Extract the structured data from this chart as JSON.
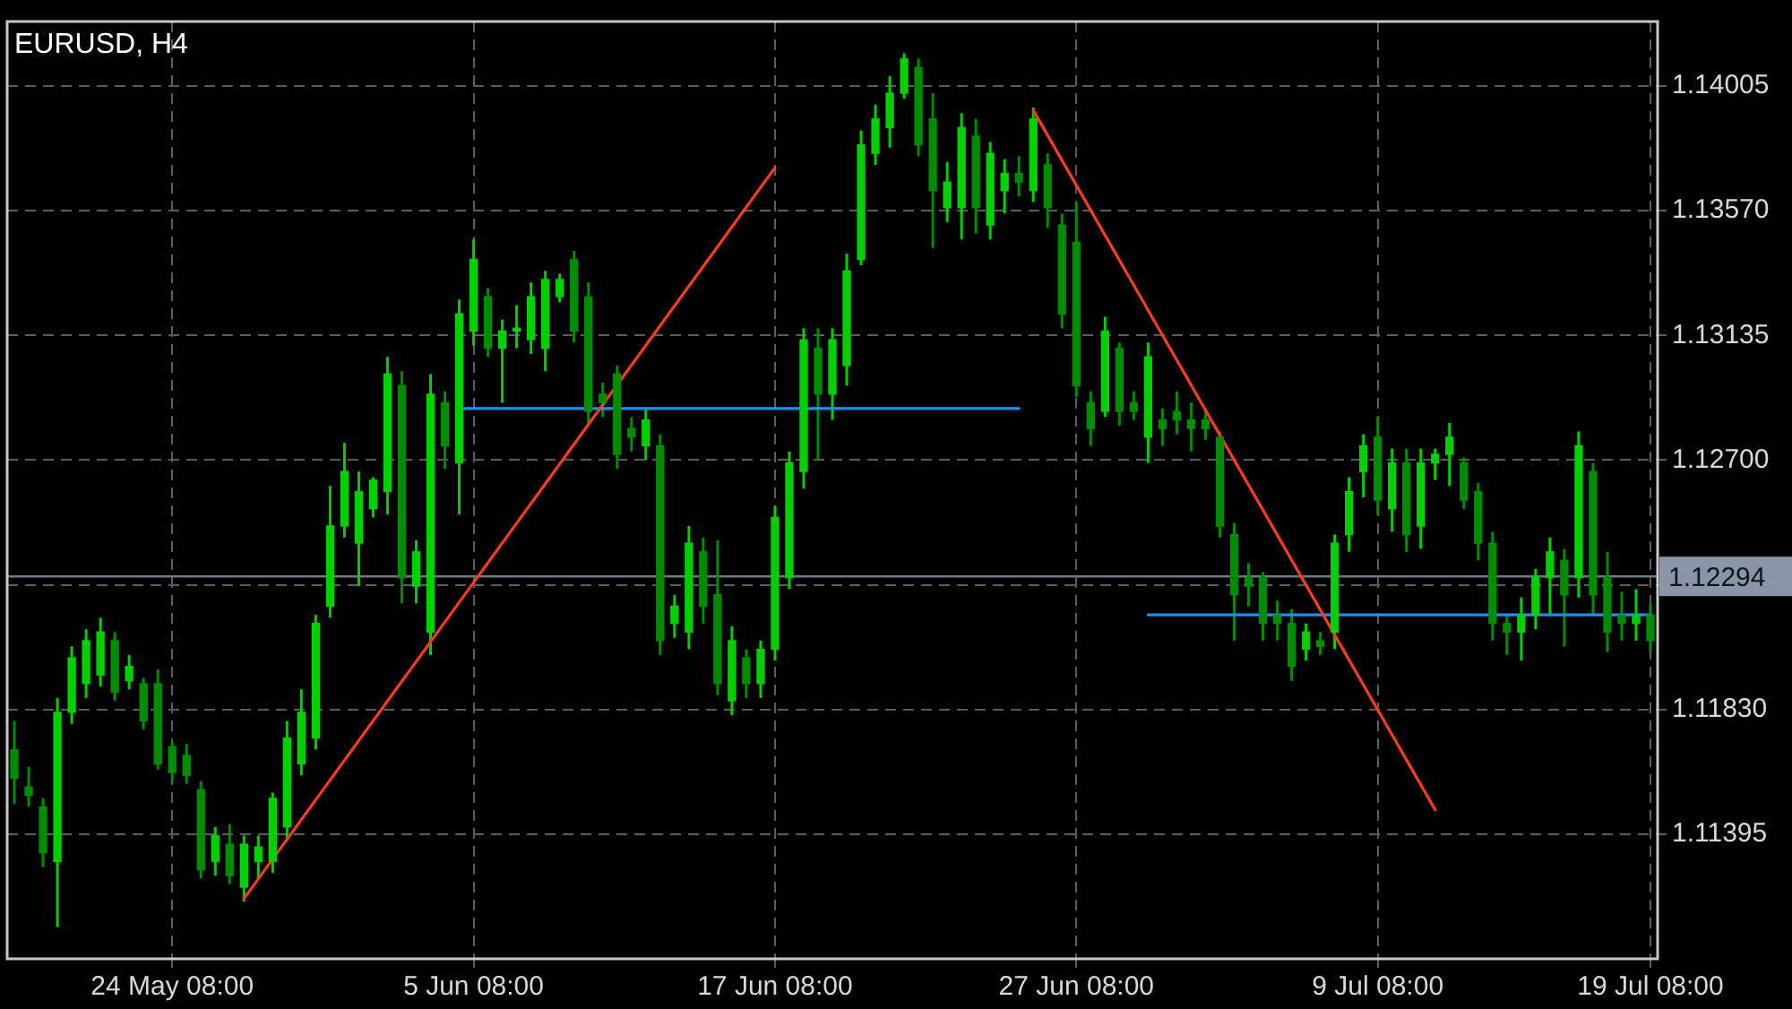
{
  "chart_data": {
    "type": "candlestick",
    "title": "EURUSD, H4",
    "colors": [
      "#008c00",
      "#008c00",
      "#008c00",
      "#00d000",
      "#00d000",
      "#00d000",
      "#00d000",
      "#008c00",
      "#00d000",
      "#008c00",
      "#008c00",
      "#008c00",
      "#008c00",
      "#008c00",
      "#00d000",
      "#008c00",
      "#00d000",
      "#00d000",
      "#00d000",
      "#00d000",
      "#00d000",
      "#00d000",
      "#00d000",
      "#00d000",
      "#00d000",
      "#00d000",
      "#00d000",
      "#008c00",
      "#00d000",
      "#00d000",
      "#008c00",
      "#00d000",
      "#00d000",
      "#008c00",
      "#00d000",
      "#00d000",
      "#00d000",
      "#00d000",
      "#00d000",
      "#008c00",
      "#008c00",
      "#008c00",
      "#008c00",
      "#008c00",
      "#00d000",
      "#008c00",
      "#00d000",
      "#00d000",
      "#008c00",
      "#008c00",
      "#00d000",
      "#008c00",
      "#00d000",
      "#00d000",
      "#00d000",
      "#00d000",
      "#008c00",
      "#00d000",
      "#00d000",
      "#00d000",
      "#00d000",
      "#00d000",
      "#00d000",
      "#008c00",
      "#008c00",
      "#00d000",
      "#00d000",
      "#008c00",
      "#00d000",
      "#00d000",
      "#008c00",
      "#00d000",
      "#008c00",
      "#008c00",
      "#008c00",
      "#008c00",
      "#00d000",
      "#008c00",
      "#008c00",
      "#00d000",
      "#008c00",
      "#008c00",
      "#008c00",
      "#008c00",
      "#008c00",
      "#008c00",
      "#008c00",
      "#008c00",
      "#008c00",
      "#008c00",
      "#00d000",
      "#008c00",
      "#00d000",
      "#00d000",
      "#00d000",
      "#008c00",
      "#00d000",
      "#008c00",
      "#00d000",
      "#00d000",
      "#00d000",
      "#008c00",
      "#008c00",
      "#008c00",
      "#008c00",
      "#00d000",
      "#00d000",
      "#00d000",
      "#008c00",
      "#00d000",
      "#008c00",
      "#008c00",
      "#008c00",
      "#00d000",
      "#008c00"
    ],
    "categories": [
      null,
      null,
      null,
      null,
      null,
      null,
      null,
      null,
      null,
      null,
      null,
      "24 May 08:00",
      null,
      null,
      null,
      null,
      null,
      null,
      null,
      null,
      null,
      null,
      null,
      null,
      null,
      null,
      null,
      null,
      null,
      null,
      null,
      null,
      "5 Jun 08:00",
      null,
      null,
      null,
      null,
      null,
      null,
      null,
      null,
      null,
      null,
      null,
      null,
      null,
      null,
      null,
      null,
      null,
      null,
      null,
      null,
      "17 Jun 08:00",
      null,
      null,
      null,
      null,
      null,
      null,
      null,
      null,
      null,
      null,
      null,
      null,
      null,
      null,
      null,
      null,
      null,
      null,
      null,
      null,
      "27 Jun 08:00",
      null,
      null,
      null,
      null,
      null,
      null,
      null,
      null,
      null,
      null,
      null,
      null,
      null,
      null,
      null,
      null,
      null,
      null,
      null,
      null,
      "9 Jul 08:00",
      null,
      null,
      null,
      null,
      null,
      null,
      null,
      null,
      null,
      null,
      null,
      null,
      null,
      null,
      null,
      null,
      null,
      null,
      "19 Jul 08:00"
    ],
    "ohlc": [
      [
        1.1169,
        1.1179,
        1.115,
        1.1159
      ],
      [
        1.1156,
        1.1163,
        1.1149,
        1.1153
      ],
      [
        1.1149,
        1.1152,
        1.1128,
        1.1133
      ],
      [
        1.113,
        1.1187,
        1.1107,
        1.1182
      ],
      [
        1.1182,
        1.1205,
        1.1178,
        1.1201
      ],
      [
        1.1192,
        1.1211,
        1.1187,
        1.1207
      ],
      [
        1.1195,
        1.1215,
        1.1191,
        1.121
      ],
      [
        1.1207,
        1.121,
        1.1186,
        1.1189
      ],
      [
        1.1193,
        1.1202,
        1.119,
        1.1198
      ],
      [
        1.1192,
        1.1194,
        1.1176,
        1.1179
      ],
      [
        1.1192,
        1.1197,
        1.1162,
        1.1164
      ],
      [
        1.117,
        1.1172,
        1.1158,
        1.1161
      ],
      [
        1.1167,
        1.1171,
        1.1157,
        1.116
      ],
      [
        1.1155,
        1.1158,
        1.1124,
        1.1127
      ],
      [
        1.113,
        1.1142,
        1.1125,
        1.1139
      ],
      [
        1.1136,
        1.1143,
        1.1122,
        1.1125
      ],
      [
        1.1121,
        1.1139,
        1.1116,
        1.1136
      ],
      [
        1.113,
        1.1139,
        1.1124,
        1.1135
      ],
      [
        1.113,
        1.1154,
        1.1126,
        1.1152
      ],
      [
        1.1142,
        1.1179,
        1.1137,
        1.1173
      ],
      [
        1.1164,
        1.119,
        1.116,
        1.1182
      ],
      [
        1.1173,
        1.1216,
        1.1169,
        1.1213
      ],
      [
        1.1219,
        1.1261,
        1.1215,
        1.1247
      ],
      [
        1.1247,
        1.1276,
        1.1243,
        1.1266
      ],
      [
        1.1241,
        1.1266,
        1.1226,
        1.1259
      ],
      [
        1.1253,
        1.1264,
        1.125,
        1.1263
      ],
      [
        1.1259,
        1.1306,
        1.1251,
        1.13
      ],
      [
        1.1296,
        1.1301,
        1.122,
        1.1229
      ],
      [
        1.1226,
        1.1242,
        1.122,
        1.1238
      ],
      [
        1.121,
        1.13,
        1.1202,
        1.1293
      ],
      [
        1.129,
        1.1294,
        1.1267,
        1.1275
      ],
      [
        1.1269,
        1.1326,
        1.1251,
        1.1321
      ],
      [
        1.1315,
        1.1347,
        1.131,
        1.134
      ],
      [
        1.1327,
        1.133,
        1.1306,
        1.1309
      ],
      [
        1.1309,
        1.1319,
        1.129,
        1.1315
      ],
      [
        1.1315,
        1.1324,
        1.1309,
        1.1316
      ],
      [
        1.1312,
        1.1332,
        1.1307,
        1.1327
      ],
      [
        1.1309,
        1.1336,
        1.1301,
        1.1333
      ],
      [
        1.1327,
        1.1335,
        1.1325,
        1.1333
      ],
      [
        1.134,
        1.1343,
        1.1311,
        1.1315
      ],
      [
        1.1327,
        1.1332,
        1.1282,
        1.1287
      ],
      [
        1.1293,
        1.1297,
        1.1285,
        1.129
      ],
      [
        1.13,
        1.1303,
        1.1267,
        1.1272
      ],
      [
        1.1281,
        1.1285,
        1.1273,
        1.1278
      ],
      [
        1.1275,
        1.1288,
        1.127,
        1.1284
      ],
      [
        1.1275,
        1.1279,
        1.1202,
        1.1207
      ],
      [
        1.1213,
        1.1223,
        1.1208,
        1.1219
      ],
      [
        1.121,
        1.1247,
        1.1204,
        1.1241
      ],
      [
        1.1238,
        1.1243,
        1.1213,
        1.1219
      ],
      [
        1.1223,
        1.1242,
        1.1188,
        1.1192
      ],
      [
        1.1186,
        1.1212,
        1.1181,
        1.1207
      ],
      [
        1.1201,
        1.1204,
        1.1187,
        1.1192
      ],
      [
        1.1192,
        1.1207,
        1.1187,
        1.1204
      ],
      [
        1.1204,
        1.1254,
        1.12,
        1.125
      ],
      [
        1.1229,
        1.1273,
        1.1225,
        1.1269
      ],
      [
        1.1266,
        1.1316,
        1.126,
        1.1312
      ],
      [
        1.1309,
        1.1316,
        1.127,
        1.1293
      ],
      [
        1.1293,
        1.1316,
        1.1284,
        1.1312
      ],
      [
        1.1303,
        1.1342,
        1.1296,
        1.1336
      ],
      [
        1.134,
        1.1385,
        1.1338,
        1.138
      ],
      [
        1.1377,
        1.1394,
        1.1373,
        1.1389
      ],
      [
        1.1386,
        1.1404,
        1.1379,
        1.1398
      ],
      [
        1.1398,
        1.1412,
        1.1396,
        1.141
      ],
      [
        1.1407,
        1.141,
        1.1376,
        1.138
      ],
      [
        1.1389,
        1.1398,
        1.1344,
        1.1364
      ],
      [
        1.1358,
        1.1374,
        1.1353,
        1.1367
      ],
      [
        1.1358,
        1.1391,
        1.1347,
        1.1386
      ],
      [
        1.1383,
        1.1389,
        1.1349,
        1.1358
      ],
      [
        1.1352,
        1.1381,
        1.1347,
        1.1377
      ],
      [
        1.1364,
        1.1375,
        1.1356,
        1.137
      ],
      [
        1.137,
        1.1376,
        1.1362,
        1.1367
      ],
      [
        1.1364,
        1.1393,
        1.136,
        1.1389
      ],
      [
        1.1373,
        1.1377,
        1.1351,
        1.1358
      ],
      [
        1.1352,
        1.1356,
        1.1316,
        1.1321
      ],
      [
        1.1346,
        1.136,
        1.1292,
        1.1296
      ],
      [
        1.129,
        1.1294,
        1.1275,
        1.1281
      ],
      [
        1.1287,
        1.132,
        1.1285,
        1.1315
      ],
      [
        1.1309,
        1.1311,
        1.1282,
        1.1287
      ],
      [
        1.129,
        1.1294,
        1.1284,
        1.1287
      ],
      [
        1.1278,
        1.1311,
        1.1269,
        1.1306
      ],
      [
        1.1284,
        1.1288,
        1.1275,
        1.1281
      ],
      [
        1.1287,
        1.1294,
        1.1279,
        1.1284
      ],
      [
        1.1284,
        1.129,
        1.1273,
        1.1281
      ],
      [
        1.1284,
        1.1288,
        1.1277,
        1.1281
      ],
      [
        1.1278,
        1.128,
        1.1243,
        1.1247
      ],
      [
        1.1244,
        1.1248,
        1.1207,
        1.1223
      ],
      [
        1.1229,
        1.1234,
        1.1219,
        1.1226
      ],
      [
        1.1229,
        1.1231,
        1.1207,
        1.1213
      ],
      [
        1.1216,
        1.1221,
        1.1207,
        1.1213
      ],
      [
        1.1213,
        1.1218,
        1.1193,
        1.1198
      ],
      [
        1.1204,
        1.1213,
        1.12,
        1.121
      ],
      [
        1.1207,
        1.121,
        1.1202,
        1.1205
      ],
      [
        1.121,
        1.1244,
        1.1204,
        1.1241
      ],
      [
        1.1244,
        1.1264,
        1.1238,
        1.1259
      ],
      [
        1.1266,
        1.1279,
        1.1257,
        1.1275
      ],
      [
        1.1278,
        1.1285,
        1.1251,
        1.1256
      ],
      [
        1.1253,
        1.1274,
        1.1245,
        1.1269
      ],
      [
        1.1269,
        1.1274,
        1.1238,
        1.1244
      ],
      [
        1.1247,
        1.1274,
        1.1239,
        1.1269
      ],
      [
        1.1269,
        1.1274,
        1.1263,
        1.1272
      ],
      [
        1.1272,
        1.1283,
        1.1261,
        1.1278
      ],
      [
        1.1269,
        1.1271,
        1.1253,
        1.1256
      ],
      [
        1.1259,
        1.1262,
        1.1235,
        1.1241
      ],
      [
        1.1241,
        1.1245,
        1.1207,
        1.1213
      ],
      [
        1.1213,
        1.1216,
        1.1202,
        1.121
      ],
      [
        1.121,
        1.1222,
        1.12,
        1.1216
      ],
      [
        1.1216,
        1.1232,
        1.1211,
        1.1229
      ],
      [
        1.1229,
        1.1243,
        1.1216,
        1.1238
      ],
      [
        1.1235,
        1.1239,
        1.1205,
        1.1223
      ],
      [
        1.1229,
        1.128,
        1.1222,
        1.1275
      ],
      [
        1.1266,
        1.1269,
        1.1216,
        1.1223
      ],
      [
        1.1229,
        1.1238,
        1.1203,
        1.121
      ],
      [
        1.1216,
        1.1224,
        1.1207,
        1.1213
      ],
      [
        1.1213,
        1.1225,
        1.1207,
        1.1216
      ],
      [
        1.1216,
        1.122,
        1.1203,
        1.1207
      ]
    ],
    "series": [
      {
        "type": "line",
        "color": "#ff3c1e",
        "values": [
          null,
          null,
          null,
          null,
          null,
          null,
          null,
          null,
          null,
          null,
          null,
          null,
          null,
          null,
          null,
          null,
          1.1117,
          null,
          null,
          null,
          null,
          null,
          null,
          null,
          null,
          null,
          null,
          null,
          null,
          null,
          null,
          null,
          null,
          null,
          null,
          null,
          null,
          null,
          null,
          null,
          null,
          null,
          null,
          null,
          null,
          null,
          null,
          null,
          null,
          null,
          null,
          null,
          null,
          1.1372,
          null,
          null,
          null,
          null,
          null,
          null,
          null,
          null,
          null,
          null,
          null,
          null,
          null,
          null,
          null,
          null,
          null,
          null,
          null,
          null,
          null,
          null,
          null,
          null,
          null,
          null,
          null,
          null,
          null,
          null,
          null,
          null,
          null,
          null,
          null,
          null,
          null,
          null,
          null,
          null,
          null,
          null,
          null,
          null,
          null,
          null,
          null,
          null,
          null,
          null,
          null,
          null,
          null,
          null,
          null,
          null,
          null,
          null,
          null,
          null,
          null
        ]
      },
      {
        "type": "line",
        "color": "#ff3c1e",
        "values": [
          null,
          null,
          null,
          null,
          null,
          null,
          null,
          null,
          null,
          null,
          null,
          null,
          null,
          null,
          null,
          null,
          null,
          null,
          null,
          null,
          null,
          null,
          null,
          null,
          null,
          null,
          null,
          null,
          null,
          null,
          null,
          null,
          null,
          null,
          null,
          null,
          null,
          null,
          null,
          null,
          null,
          null,
          null,
          null,
          null,
          null,
          null,
          null,
          null,
          null,
          null,
          null,
          null,
          null,
          null,
          null,
          null,
          null,
          null,
          null,
          null,
          null,
          null,
          null,
          null,
          null,
          null,
          null,
          null,
          null,
          null,
          1.1392,
          null,
          null,
          null,
          null,
          null,
          null,
          null,
          null,
          null,
          null,
          null,
          null,
          null,
          null,
          null,
          null,
          null,
          null,
          null,
          null,
          null,
          null,
          null,
          null,
          null,
          null,
          null,
          1.1148,
          null,
          null,
          null,
          null,
          null,
          null,
          null,
          null,
          null,
          null,
          null,
          null,
          null,
          null,
          null
        ]
      },
      {
        "type": "line",
        "color": "#1e90ff",
        "values": [
          null,
          null,
          null,
          null,
          null,
          null,
          null,
          null,
          null,
          null,
          null,
          null,
          null,
          null,
          null,
          null,
          null,
          null,
          null,
          null,
          null,
          null,
          null,
          null,
          null,
          null,
          null,
          null,
          null,
          null,
          null,
          1.1288,
          null,
          null,
          null,
          null,
          null,
          null,
          null,
          null,
          null,
          null,
          null,
          null,
          null,
          null,
          null,
          null,
          null,
          null,
          null,
          null,
          null,
          null,
          null,
          null,
          null,
          null,
          null,
          null,
          null,
          null,
          null,
          null,
          null,
          null,
          null,
          null,
          null,
          null,
          1.1288,
          null,
          null,
          null,
          null,
          null,
          null,
          null,
          null,
          null,
          null,
          null,
          null,
          null,
          null,
          null,
          null,
          null,
          null,
          null,
          null,
          null,
          null,
          null,
          null,
          null,
          null,
          null,
          null,
          null,
          null,
          null,
          null,
          null,
          null,
          null,
          null,
          null,
          null,
          null,
          null,
          null,
          null,
          null,
          null
        ]
      },
      {
        "type": "line",
        "color": "#1e90ff",
        "values": [
          null,
          null,
          null,
          null,
          null,
          null,
          null,
          null,
          null,
          null,
          null,
          null,
          null,
          null,
          null,
          null,
          null,
          null,
          null,
          null,
          null,
          null,
          null,
          null,
          null,
          null,
          null,
          null,
          null,
          null,
          null,
          null,
          null,
          null,
          null,
          null,
          null,
          null,
          null,
          null,
          null,
          null,
          null,
          null,
          null,
          null,
          null,
          null,
          null,
          null,
          null,
          null,
          null,
          null,
          null,
          null,
          null,
          null,
          null,
          null,
          null,
          null,
          null,
          null,
          null,
          null,
          null,
          null,
          null,
          null,
          null,
          null,
          null,
          null,
          null,
          null,
          null,
          null,
          null,
          1.1216,
          null,
          null,
          null,
          null,
          null,
          null,
          null,
          null,
          null,
          null,
          null,
          null,
          null,
          null,
          null,
          null,
          null,
          null,
          null,
          null,
          null,
          null,
          null,
          null,
          null,
          null,
          null,
          null,
          null,
          null,
          null,
          null,
          null,
          null,
          1.1216
        ]
      }
    ],
    "ylim": [
      1.1096,
      1.1423
    ],
    "yticks": [
      1.14005,
      {
        "value": 1.1357,
        "label": "1.13570"
      },
      1.13135,
      {
        "value": 1.127,
        "label": "1.12700"
      },
      {
        "value": 1.12265,
        "label": null
      },
      {
        "value": 1.1183,
        "label": "1.11830"
      },
      1.11395
    ],
    "ref_lines": [
      {
        "axis": "y",
        "value": 1.12294,
        "label": "1.12294",
        "color": "#6c7886"
      }
    ],
    "grid": true,
    "legend": false,
    "marker": "none",
    "line_style": "solid"
  }
}
